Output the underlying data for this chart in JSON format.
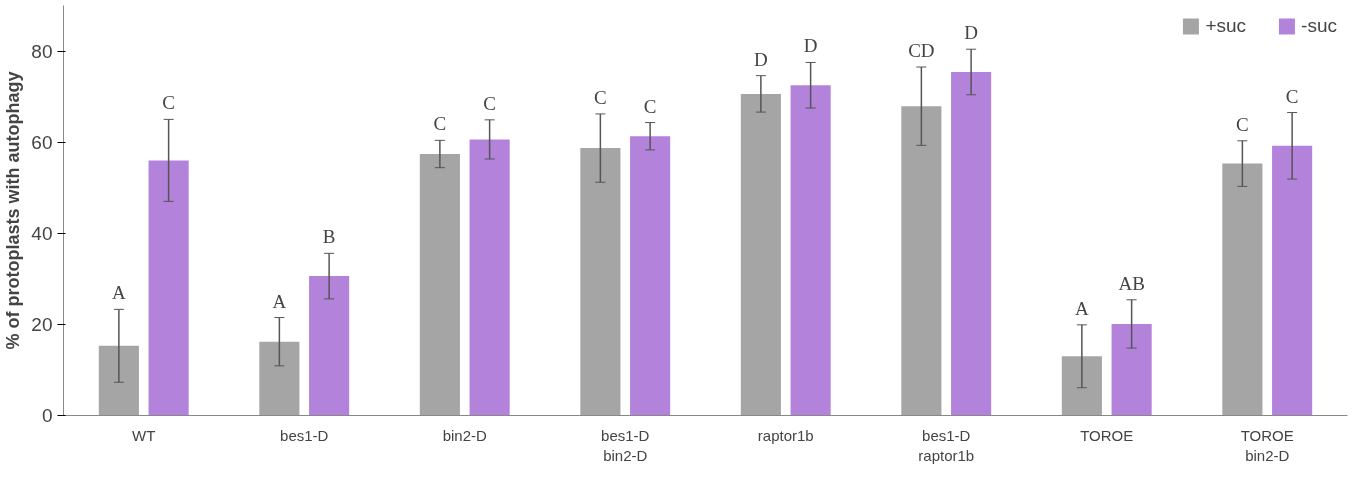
{
  "chart_data": {
    "type": "bar",
    "ylabel": "% of protoplasts with autophagy",
    "categories": [
      "WT",
      "bes1-D",
      "bin2-D",
      "bes1-D\nbin2-D",
      "raptor1b",
      "bes1-D\nraptor1b",
      "TOROE",
      "TOROE\nbin2-D"
    ],
    "series": [
      {
        "name": "+suc",
        "color": "#a5a5a5",
        "values": [
          15.3,
          16.2,
          57.4,
          58.7,
          70.6,
          67.9,
          13,
          55.3
        ],
        "errors": [
          8,
          5.3,
          3,
          7.5,
          4,
          8.6,
          6.9,
          5
        ],
        "value_labels": [
          "A",
          "A",
          "C",
          "C",
          "D",
          "CD",
          "A",
          "C"
        ]
      },
      {
        "name": "-suc",
        "color": "#b383dc",
        "values": [
          56,
          30.6,
          60.6,
          61.3,
          72.5,
          75.4,
          20.1,
          59.2
        ],
        "errors": [
          9,
          5,
          4.3,
          3,
          5,
          5,
          5.3,
          7.3
        ],
        "value_labels": [
          "C",
          "B",
          "C",
          "C",
          "D",
          "D",
          "AB",
          "C"
        ]
      }
    ],
    "ylim": [
      0,
      90
    ],
    "yticks": [
      0,
      20,
      40,
      60,
      80
    ],
    "grid": false,
    "legend": "top right"
  }
}
